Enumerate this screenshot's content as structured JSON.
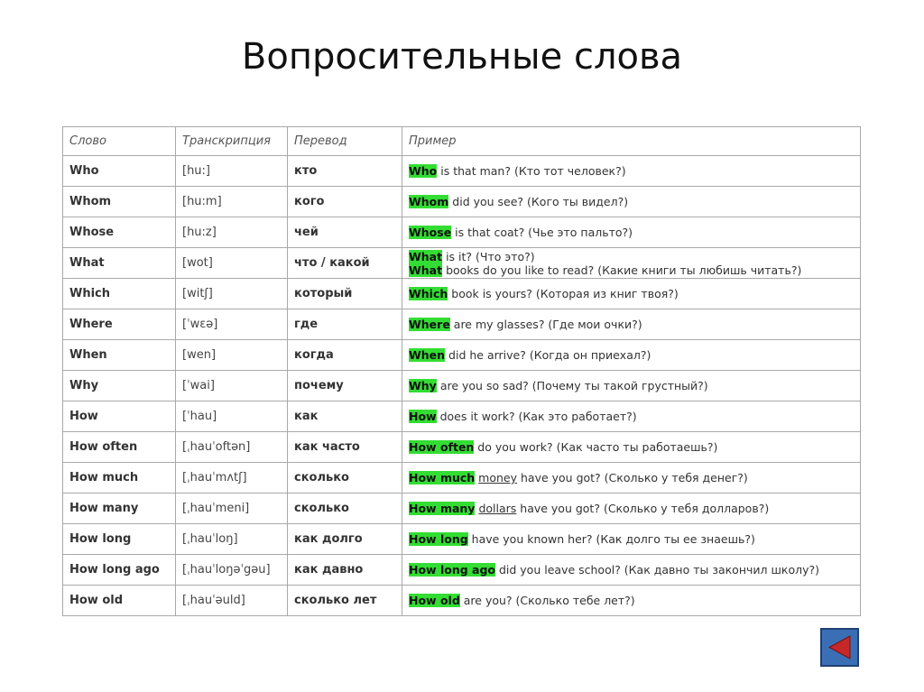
{
  "title": "Вопросительные слова",
  "headers": [
    "Слово",
    "Транскрипция",
    "Перевод",
    "Пример"
  ],
  "rows": [
    {
      "word": "Who",
      "trans": "[hu:]",
      "rus": "кто",
      "ex": [
        {
          "hl": "Who",
          "parts": [
            {
              "t": " is that man? (Кто тот человек?)"
            }
          ]
        }
      ]
    },
    {
      "word": "Whom",
      "trans": "[hu:m]",
      "rus": "кого",
      "ex": [
        {
          "hl": "Whom",
          "parts": [
            {
              "t": " did you see? (Кого ты видел?)"
            }
          ]
        }
      ]
    },
    {
      "word": "Whose",
      "trans": "[hu:z]",
      "rus": "чей",
      "ex": [
        {
          "hl": "Whose",
          "parts": [
            {
              "t": " is that coat? (Чье это пальто?)"
            }
          ]
        }
      ]
    },
    {
      "word": "What",
      "trans": "[wot]",
      "rus": "что / какой",
      "ex": [
        {
          "hl": "What",
          "parts": [
            {
              "t": " is it? (Что это?)"
            }
          ]
        },
        {
          "hl": "What",
          "parts": [
            {
              "t": " books do you like to read? (Какие книги ты любишь читать?)"
            }
          ]
        }
      ]
    },
    {
      "word": "Which",
      "trans": "[witʃ]",
      "rus": "который",
      "ex": [
        {
          "hl": "Which",
          "parts": [
            {
              "t": " book is yours? (Которая из книг твоя?)"
            }
          ]
        }
      ]
    },
    {
      "word": "Where",
      "trans": "[ˈwɛə]",
      "rus": "где",
      "ex": [
        {
          "hl": "Where",
          "parts": [
            {
              "t": " are my glasses? (Где мои очки?)"
            }
          ]
        }
      ]
    },
    {
      "word": "When",
      "trans": "[wen]",
      "rus": "когда",
      "ex": [
        {
          "hl": "When",
          "parts": [
            {
              "t": " did he arrive? (Когда он приехал?)"
            }
          ]
        }
      ]
    },
    {
      "word": "Why",
      "trans": "[ˈwai]",
      "rus": "почему",
      "ex": [
        {
          "hl": "Why",
          "parts": [
            {
              "t": " are you so sad? (Почему ты такой грустный?)"
            }
          ]
        }
      ]
    },
    {
      "word": "How",
      "trans": "[ˈhau]",
      "rus": "как",
      "ex": [
        {
          "hl": "How",
          "parts": [
            {
              "t": " does it work? (Как это работает?)"
            }
          ]
        }
      ]
    },
    {
      "word": "How often",
      "trans": "[ˌhauˈoftən]",
      "rus": "как часто",
      "ex": [
        {
          "hl": "How often",
          "parts": [
            {
              "t": " do you work? (Как часто ты работаешь?)"
            }
          ]
        }
      ]
    },
    {
      "word": "How much",
      "trans": "[ˌhauˈmʌtʃ]",
      "rus": "сколько",
      "ex": [
        {
          "hl": "How much",
          "parts": [
            {
              "t": " "
            },
            {
              "t": "money",
              "u": true
            },
            {
              "t": " have you got? (Сколько у тебя денег?)"
            }
          ]
        }
      ]
    },
    {
      "word": "How many",
      "trans": "[ˌhauˈmeni]",
      "rus": "сколько",
      "ex": [
        {
          "hl": "How many",
          "parts": [
            {
              "t": " "
            },
            {
              "t": "dollars",
              "u": true
            },
            {
              "t": " have you got? (Сколько у тебя долларов?)"
            }
          ]
        }
      ]
    },
    {
      "word": "How long",
      "trans": "[ˌhauˈloŋ]",
      "rus": "как долго",
      "ex": [
        {
          "hl": "How long",
          "parts": [
            {
              "t": " have you known her? (Как долго ты ее знаешь?)"
            }
          ]
        }
      ]
    },
    {
      "word": "How long ago",
      "trans": "[ˌhauˈloŋəˈgəu]",
      "rus": "как давно",
      "ex": [
        {
          "hl": "How long ago",
          "parts": [
            {
              "t": " did you leave school? (Как давно ты закончил школу?)"
            }
          ]
        }
      ]
    },
    {
      "word": "How old",
      "trans": "[ˌhauˈəuld]",
      "rus": "сколько лет",
      "ex": [
        {
          "hl": "How old",
          "parts": [
            {
              "t": " are you? (Сколько тебе лет?)"
            }
          ]
        }
      ]
    }
  ],
  "nav": {
    "back_icon": "triangle-left-icon"
  }
}
